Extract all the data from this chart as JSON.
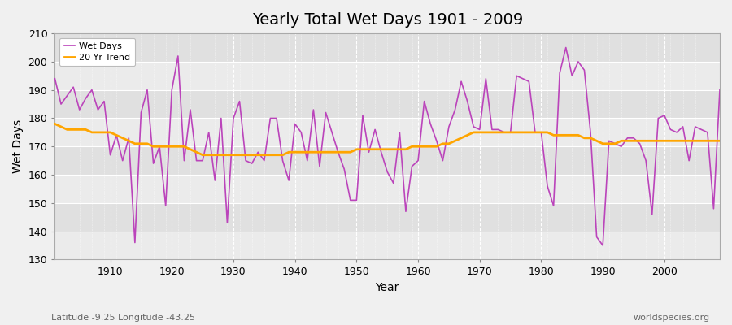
{
  "title": "Yearly Total Wet Days 1901 - 2009",
  "xlabel": "Year",
  "ylabel": "Wet Days",
  "lat_lon_label": "Latitude -9.25 Longitude -43.25",
  "watermark": "worldspecies.org",
  "ylim": [
    130,
    210
  ],
  "xlim": [
    1901,
    2009
  ],
  "yticks": [
    130,
    140,
    150,
    160,
    170,
    180,
    190,
    200,
    210
  ],
  "xticks": [
    1910,
    1920,
    1930,
    1940,
    1950,
    1960,
    1970,
    1980,
    1990,
    2000
  ],
  "wet_days_color": "#bb44bb",
  "trend_color": "#ffa500",
  "fig_bg_color": "#f0f0f0",
  "plot_bg_color": "#e8e8e8",
  "legend_wet_days": "Wet Days",
  "legend_trend": "20 Yr Trend",
  "years": [
    1901,
    1902,
    1903,
    1904,
    1905,
    1906,
    1907,
    1908,
    1909,
    1910,
    1911,
    1912,
    1913,
    1914,
    1915,
    1916,
    1917,
    1918,
    1919,
    1920,
    1921,
    1922,
    1923,
    1924,
    1925,
    1926,
    1927,
    1928,
    1929,
    1930,
    1931,
    1932,
    1933,
    1934,
    1935,
    1936,
    1937,
    1938,
    1939,
    1940,
    1941,
    1942,
    1943,
    1944,
    1945,
    1946,
    1947,
    1948,
    1949,
    1950,
    1951,
    1952,
    1953,
    1954,
    1955,
    1956,
    1957,
    1958,
    1959,
    1960,
    1961,
    1962,
    1963,
    1964,
    1965,
    1966,
    1967,
    1968,
    1969,
    1970,
    1971,
    1972,
    1973,
    1974,
    1975,
    1976,
    1977,
    1978,
    1979,
    1980,
    1981,
    1982,
    1983,
    1984,
    1985,
    1986,
    1987,
    1988,
    1989,
    1990,
    1991,
    1992,
    1993,
    1994,
    1995,
    1996,
    1997,
    1998,
    1999,
    2000,
    2001,
    2002,
    2003,
    2004,
    2005,
    2006,
    2007,
    2008,
    2009
  ],
  "wet_days": [
    194,
    185,
    188,
    191,
    183,
    187,
    190,
    183,
    186,
    167,
    174,
    165,
    173,
    136,
    182,
    190,
    164,
    170,
    149,
    190,
    202,
    165,
    183,
    165,
    165,
    175,
    158,
    180,
    143,
    180,
    186,
    165,
    164,
    168,
    165,
    180,
    180,
    165,
    158,
    178,
    175,
    165,
    183,
    163,
    182,
    175,
    168,
    162,
    151,
    151,
    181,
    168,
    176,
    168,
    161,
    157,
    175,
    147,
    163,
    165,
    186,
    178,
    172,
    165,
    177,
    183,
    193,
    186,
    177,
    176,
    194,
    176,
    176,
    175,
    175,
    195,
    194,
    193,
    175,
    175,
    156,
    149,
    196,
    205,
    195,
    200,
    197,
    175,
    138,
    135,
    172,
    171,
    170,
    173,
    173,
    171,
    165,
    146,
    180,
    181,
    176,
    175,
    177,
    165,
    177,
    176,
    175,
    148,
    190
  ],
  "trend": [
    178,
    177,
    176,
    176,
    176,
    176,
    175,
    175,
    175,
    175,
    174,
    173,
    172,
    171,
    171,
    171,
    170,
    170,
    170,
    170,
    170,
    170,
    169,
    168,
    167,
    167,
    167,
    167,
    167,
    167,
    167,
    167,
    167,
    167,
    167,
    167,
    167,
    167,
    168,
    168,
    168,
    168,
    168,
    168,
    168,
    168,
    168,
    168,
    168,
    169,
    169,
    169,
    169,
    169,
    169,
    169,
    169,
    169,
    170,
    170,
    170,
    170,
    170,
    171,
    171,
    172,
    173,
    174,
    175,
    175,
    175,
    175,
    175,
    175,
    175,
    175,
    175,
    175,
    175,
    175,
    175,
    174,
    174,
    174,
    174,
    174,
    173,
    173,
    172,
    171,
    171,
    171,
    172,
    172,
    172,
    172,
    172,
    172,
    172,
    172,
    172,
    172,
    172,
    172,
    172,
    172,
    172,
    172,
    172
  ]
}
